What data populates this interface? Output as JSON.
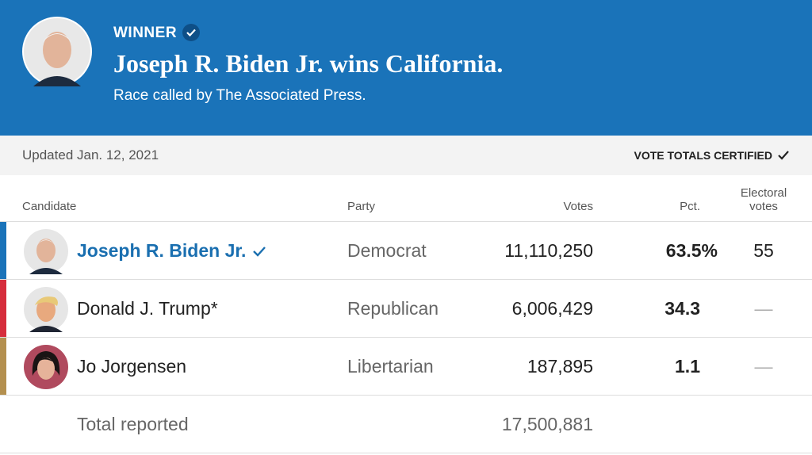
{
  "header": {
    "label": "WINNER",
    "title": "Joseph R. Biden Jr. wins California.",
    "subtitle": "Race called by The Associated Press."
  },
  "status": {
    "updated": "Updated Jan. 12, 2021",
    "certified": "VOTE TOTALS CERTIFIED"
  },
  "table": {
    "columns": [
      "Candidate",
      "Party",
      "Votes",
      "Pct.",
      "Electoral votes"
    ],
    "rows": [
      [
        "Joseph R. Biden Jr.",
        "Democrat",
        "11,110,250",
        "63.5%",
        "55"
      ],
      [
        "Donald J. Trump*",
        "Republican",
        "6,006,429",
        "34.3",
        "—"
      ],
      [
        "Jo Jorgensen",
        "Libertarian",
        "187,895",
        "1.1",
        "—"
      ]
    ],
    "total": [
      "Total reported",
      "17,500,881"
    ]
  }
}
